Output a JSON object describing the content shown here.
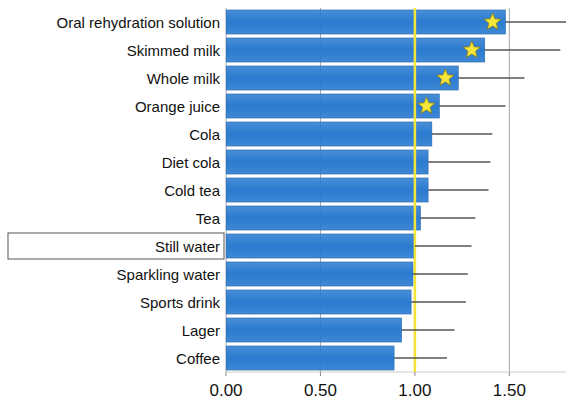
{
  "chart_data": {
    "type": "bar",
    "orientation": "horizontal",
    "categories": [
      "Oral rehydration solution",
      "Skimmed milk",
      "Whole milk",
      "Orange juice",
      "Cola",
      "Diet cola",
      "Cold tea",
      "Tea",
      "Still water",
      "Sparkling water",
      "Sports drink",
      "Lager",
      "Coffee"
    ],
    "values": [
      1.48,
      1.37,
      1.23,
      1.13,
      1.09,
      1.07,
      1.07,
      1.03,
      1.0,
      0.99,
      0.98,
      0.93,
      0.89
    ],
    "errors": [
      0.32,
      0.4,
      0.35,
      0.35,
      0.32,
      0.33,
      0.32,
      0.29,
      0.3,
      0.29,
      0.29,
      0.28,
      0.28
    ],
    "significant": [
      true,
      true,
      true,
      true,
      false,
      false,
      false,
      false,
      false,
      false,
      false,
      false,
      false
    ],
    "highlight": "Still water",
    "reference_line": 1,
    "color": "#2a7bd0",
    "xlim": [
      0,
      1.8
    ],
    "xticks": [
      {
        "value": 0,
        "label": "0.00"
      },
      {
        "value": 0.5,
        "label": "0.50"
      },
      {
        "value": 1,
        "label": "1.00"
      },
      {
        "value": 1.5,
        "label": "1.50"
      }
    ],
    "grid": true
  }
}
